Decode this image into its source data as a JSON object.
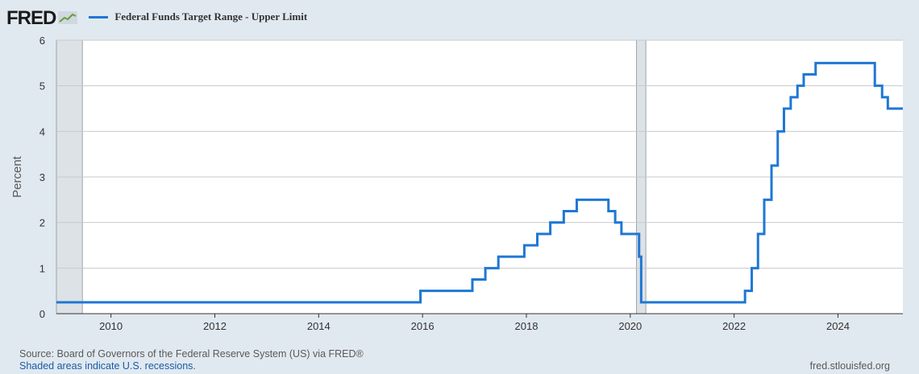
{
  "header": {
    "logo_text": "FRED",
    "legend_label": "Federal Funds Target Range - Upper Limit",
    "series_color": "#1f77d4",
    "logo_icon": "chart-line-icon"
  },
  "footer": {
    "source": "Source: Board of Governors of the Federal Reserve System (US) via FRED®",
    "recession_note": "Shaded areas indicate U.S. recessions.",
    "site": "fred.stlouisfed.org"
  },
  "chart_data": {
    "type": "line",
    "step": true,
    "title": "",
    "xlabel": "",
    "ylabel": "Percent",
    "xlim": [
      2008.95,
      2025.25
    ],
    "ylim": [
      0,
      6
    ],
    "yticks": [
      0,
      1,
      2,
      3,
      4,
      5,
      6
    ],
    "xticks": [
      2010,
      2012,
      2014,
      2016,
      2018,
      2020,
      2022,
      2024
    ],
    "grid": true,
    "recessions": [
      [
        2008.95,
        2009.45
      ],
      [
        2020.12,
        2020.3
      ]
    ],
    "series": [
      {
        "name": "Federal Funds Target Range - Upper Limit",
        "color": "#1f77d4",
        "points": [
          [
            2008.95,
            0.25
          ],
          [
            2015.96,
            0.5
          ],
          [
            2016.96,
            0.75
          ],
          [
            2017.21,
            1.0
          ],
          [
            2017.46,
            1.25
          ],
          [
            2017.96,
            1.5
          ],
          [
            2018.21,
            1.75
          ],
          [
            2018.46,
            2.0
          ],
          [
            2018.72,
            2.25
          ],
          [
            2018.97,
            2.5
          ],
          [
            2019.58,
            2.25
          ],
          [
            2019.71,
            2.0
          ],
          [
            2019.83,
            1.75
          ],
          [
            2020.17,
            1.25
          ],
          [
            2020.21,
            0.25
          ],
          [
            2022.21,
            0.5
          ],
          [
            2022.34,
            1.0
          ],
          [
            2022.46,
            1.75
          ],
          [
            2022.58,
            2.5
          ],
          [
            2022.72,
            3.25
          ],
          [
            2022.84,
            4.0
          ],
          [
            2022.96,
            4.5
          ],
          [
            2023.09,
            4.75
          ],
          [
            2023.22,
            5.0
          ],
          [
            2023.34,
            5.25
          ],
          [
            2023.57,
            5.5
          ],
          [
            2024.71,
            5.0
          ],
          [
            2024.85,
            4.75
          ],
          [
            2024.96,
            4.5
          ],
          [
            2025.25,
            4.5
          ]
        ]
      }
    ]
  }
}
